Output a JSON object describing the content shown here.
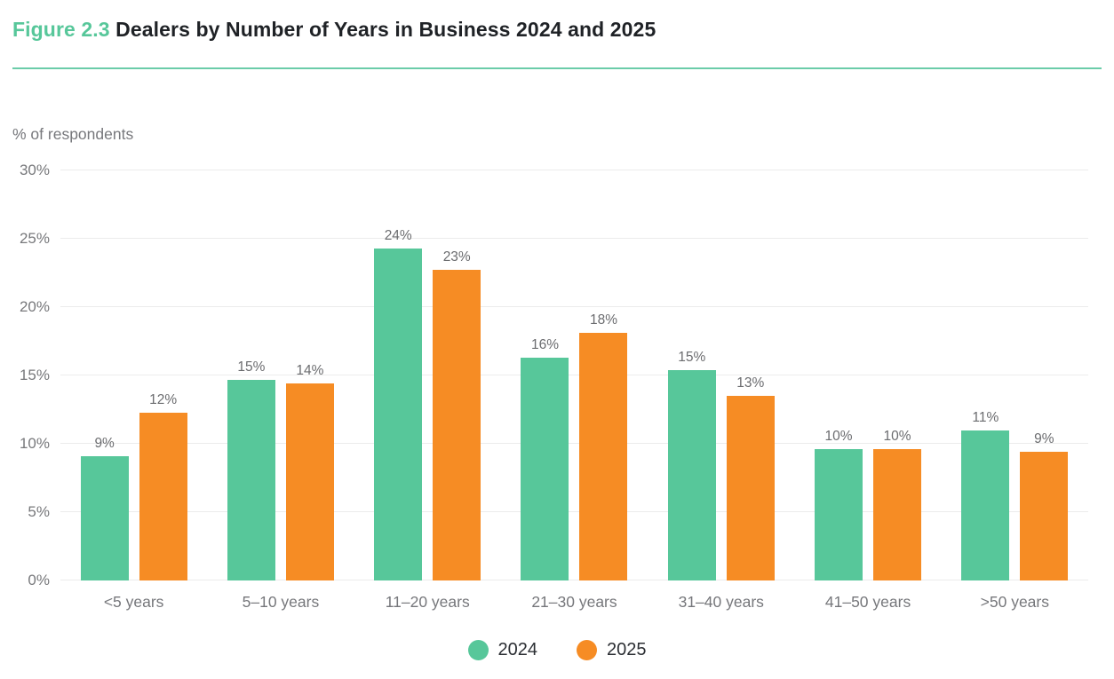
{
  "title": {
    "prefix": "Figure 2.3",
    "text": " Dealers by Number of Years in Business 2024 and 2025",
    "prefix_color": "#57C79A",
    "text_color": "#1F2226",
    "rule_color": "#6BCCA9"
  },
  "chart_data": {
    "type": "bar",
    "title": "Figure 2.3 Dealers by Number of Years in Business 2024 and 2025",
    "axis_top_label": "% of respondents",
    "categories": [
      "<5 years",
      "5–10 years",
      "11–20 years",
      "21–30 years",
      "31–40 years",
      "41–50 years",
      ">50 years"
    ],
    "series": [
      {
        "name": "2024",
        "color": "#57C79A",
        "values": [
          9,
          15,
          24,
          16,
          15,
          10,
          11
        ],
        "value_labels": [
          "9%",
          "15%",
          "24%",
          "16%",
          "15%",
          "10%",
          "11%"
        ],
        "bar_heights_pct": [
          9.1,
          14.7,
          24.3,
          16.3,
          15.4,
          9.6,
          11.0
        ]
      },
      {
        "name": "2025",
        "color": "#F68C24",
        "values": [
          12,
          14,
          23,
          18,
          13,
          10,
          9
        ],
        "value_labels": [
          "12%",
          "14%",
          "23%",
          "18%",
          "13%",
          "10%",
          "9%"
        ],
        "bar_heights_pct": [
          12.3,
          14.4,
          22.7,
          18.1,
          13.5,
          9.6,
          9.4
        ]
      }
    ],
    "y_axis": {
      "min": 0,
      "max": 30,
      "tick_step": 5,
      "tick_labels": [
        "0%",
        "5%",
        "10%",
        "15%",
        "20%",
        "25%",
        "30%"
      ]
    },
    "ylim": [
      0,
      30
    ],
    "grid": true,
    "gridline_color": "#ECECEC",
    "legend": {
      "position": "bottom",
      "items": [
        {
          "label": "2024",
          "color": "#57C79A"
        },
        {
          "label": "2025",
          "color": "#F68C24"
        }
      ]
    }
  }
}
